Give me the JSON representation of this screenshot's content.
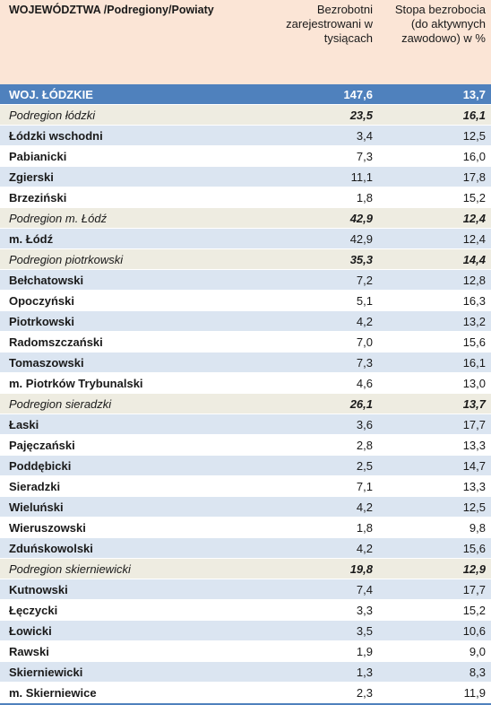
{
  "header": {
    "col1": "WOJEWÓDZTWA /Podregiony/Powiaty",
    "col2": "Bezrobotni zarejestrowani w tysiącach",
    "col3": "Stopa bezrobocia  (do aktywnych zawodowo) w %"
  },
  "rows": [
    {
      "type": "voiv",
      "name": "WOJ. ŁÓDZKIE",
      "unemployed": "147,6",
      "rate": "13,7"
    },
    {
      "type": "sub",
      "name": "Podregion łódzki",
      "unemployed": "23,5",
      "rate": "16,1"
    },
    {
      "type": "pow",
      "name": "Łódzki wschodni",
      "unemployed": "3,4",
      "rate": "12,5"
    },
    {
      "type": "pow",
      "name": "Pabianicki",
      "unemployed": "7,3",
      "rate": "16,0"
    },
    {
      "type": "pow",
      "name": "Zgierski",
      "unemployed": "11,1",
      "rate": "17,8"
    },
    {
      "type": "pow",
      "name": "Brzeziński",
      "unemployed": "1,8",
      "rate": "15,2"
    },
    {
      "type": "sub",
      "name": "Podregion m. Łódź",
      "unemployed": "42,9",
      "rate": "12,4"
    },
    {
      "type": "pow",
      "name": "m. Łódź",
      "unemployed": "42,9",
      "rate": "12,4"
    },
    {
      "type": "sub",
      "name": "Podregion piotrkowski",
      "unemployed": "35,3",
      "rate": "14,4"
    },
    {
      "type": "pow",
      "name": "Bełchatowski",
      "unemployed": "7,2",
      "rate": "12,8"
    },
    {
      "type": "pow",
      "name": "Opoczyński",
      "unemployed": "5,1",
      "rate": "16,3"
    },
    {
      "type": "pow",
      "name": "Piotrkowski",
      "unemployed": "4,2",
      "rate": "13,2"
    },
    {
      "type": "pow",
      "name": "Radomszczański",
      "unemployed": "7,0",
      "rate": "15,6"
    },
    {
      "type": "pow",
      "name": "Tomaszowski",
      "unemployed": "7,3",
      "rate": "16,1"
    },
    {
      "type": "pow",
      "name": "m. Piotrków Trybunalski",
      "unemployed": "4,6",
      "rate": "13,0"
    },
    {
      "type": "sub",
      "name": "Podregion sieradzki",
      "unemployed": "26,1",
      "rate": "13,7"
    },
    {
      "type": "pow",
      "name": "Łaski",
      "unemployed": "3,6",
      "rate": "17,7"
    },
    {
      "type": "pow",
      "name": "Pajęczański",
      "unemployed": "2,8",
      "rate": "13,3"
    },
    {
      "type": "pow",
      "name": "Poddębicki",
      "unemployed": "2,5",
      "rate": "14,7"
    },
    {
      "type": "pow",
      "name": "Sieradzki",
      "unemployed": "7,1",
      "rate": "13,3"
    },
    {
      "type": "pow",
      "name": "Wieluński",
      "unemployed": "4,2",
      "rate": "12,5"
    },
    {
      "type": "pow",
      "name": "Wieruszowski",
      "unemployed": "1,8",
      "rate": "9,8"
    },
    {
      "type": "pow",
      "name": "Zduńskowolski",
      "unemployed": "4,2",
      "rate": "15,6"
    },
    {
      "type": "sub",
      "name": "Podregion skierniewicki",
      "unemployed": "19,8",
      "rate": "12,9"
    },
    {
      "type": "pow",
      "name": "Kutnowski",
      "unemployed": "7,4",
      "rate": "17,7"
    },
    {
      "type": "pow",
      "name": "Łęczycki",
      "unemployed": "3,3",
      "rate": "15,2"
    },
    {
      "type": "pow",
      "name": "Łowicki",
      "unemployed": "3,5",
      "rate": "10,6"
    },
    {
      "type": "pow",
      "name": "Rawski",
      "unemployed": "1,9",
      "rate": "9,0"
    },
    {
      "type": "pow",
      "name": "Skierniewicki",
      "unemployed": "1,3",
      "rate": "8,3"
    },
    {
      "type": "pow",
      "name": "m. Skierniewice",
      "unemployed": "2,3",
      "rate": "11,9"
    }
  ]
}
